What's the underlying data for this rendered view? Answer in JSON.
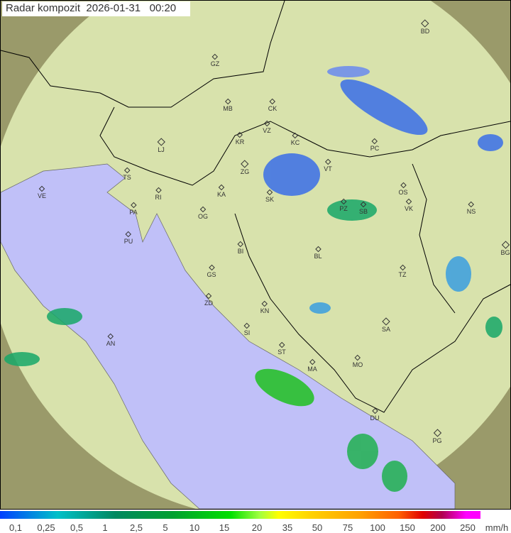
{
  "title": "Radar kompozit  2026-01-31   00:20",
  "legend": {
    "unit": "mm/h",
    "ticks": [
      "0,1",
      "0,25",
      "0,5",
      "1",
      "2,5",
      "5",
      "10",
      "15",
      "20",
      "35",
      "50",
      "75",
      "100",
      "150",
      "200",
      "250"
    ]
  },
  "colors": {
    "sea": "#c0c0f8",
    "land": "#dbe6b0",
    "outside": "#9a9a6a",
    "rain_light": "#3a6ee8",
    "rain_mid": "#18a868",
    "rain_heavy": "#20c020"
  },
  "cities": [
    {
      "code": "GZ",
      "big": false
    },
    {
      "code": "MB",
      "big": false
    },
    {
      "code": "CK",
      "big": false
    },
    {
      "code": "VZ",
      "big": false
    },
    {
      "code": "KR",
      "big": false
    },
    {
      "code": "KC",
      "big": false
    },
    {
      "code": "LJ",
      "big": true
    },
    {
      "code": "ZG",
      "big": true
    },
    {
      "code": "BD",
      "big": true
    },
    {
      "code": "PC",
      "big": false
    },
    {
      "code": "VT",
      "big": false
    },
    {
      "code": "OS",
      "big": false
    },
    {
      "code": "KA",
      "big": false
    },
    {
      "code": "SK",
      "big": false
    },
    {
      "code": "TS",
      "big": false
    },
    {
      "code": "VE",
      "big": false
    },
    {
      "code": "RI",
      "big": false
    },
    {
      "code": "PA",
      "big": false
    },
    {
      "code": "OG",
      "big": false
    },
    {
      "code": "PZ",
      "big": false
    },
    {
      "code": "SB",
      "big": false
    },
    {
      "code": "VK",
      "big": false
    },
    {
      "code": "NS",
      "big": false
    },
    {
      "code": "PU",
      "big": false
    },
    {
      "code": "BI",
      "big": false
    },
    {
      "code": "BL",
      "big": false
    },
    {
      "code": "BG",
      "big": true
    },
    {
      "code": "GS",
      "big": false
    },
    {
      "code": "TZ",
      "big": false
    },
    {
      "code": "ZD",
      "big": false
    },
    {
      "code": "KN",
      "big": false
    },
    {
      "code": "SI",
      "big": false
    },
    {
      "code": "SA",
      "big": true
    },
    {
      "code": "AN",
      "big": false
    },
    {
      "code": "ST",
      "big": false
    },
    {
      "code": "MO",
      "big": false
    },
    {
      "code": "MA",
      "big": false
    },
    {
      "code": "DU",
      "big": false
    },
    {
      "code": "PG",
      "big": true
    }
  ]
}
